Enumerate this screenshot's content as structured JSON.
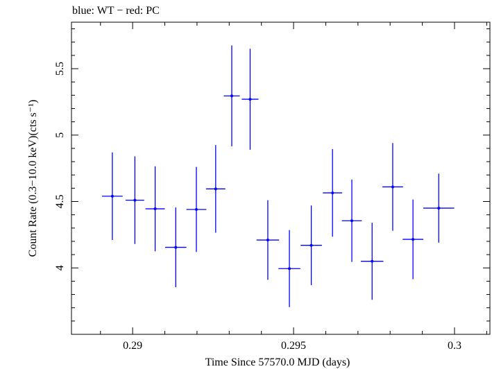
{
  "chart_data": {
    "type": "scatter",
    "title": "blue: WT − red: PC",
    "xlabel": "Time Since 57570.0 MJD (days)",
    "ylabel": "Count Rate (0.3−10.0 keV)(cts s⁻¹)",
    "xlim": [
      0.2881,
      0.3011
    ],
    "ylim": [
      3.5,
      5.85
    ],
    "x_ticks": [
      0.29,
      0.295,
      0.3
    ],
    "x_tick_labels": [
      "0.29",
      "0.295",
      "0.3"
    ],
    "y_ticks": [
      4,
      4.5,
      5,
      5.5
    ],
    "y_tick_labels": [
      "4",
      "4.5",
      "5",
      "5.5"
    ],
    "grid": false,
    "series": [
      {
        "color": "#0000ff",
        "points": [
          {
            "x": 0.28937,
            "xerr": 0.00032,
            "y": 4.54,
            "yerr": 0.33
          },
          {
            "x": 0.29007,
            "xerr": 0.00029,
            "y": 4.51,
            "yerr": 0.33
          },
          {
            "x": 0.2907,
            "xerr": 0.0003,
            "y": 4.445,
            "yerr": 0.32
          },
          {
            "x": 0.29134,
            "xerr": 0.00033,
            "y": 4.155,
            "yerr": 0.3
          },
          {
            "x": 0.29198,
            "xerr": 0.00031,
            "y": 4.44,
            "yerr": 0.32
          },
          {
            "x": 0.29258,
            "xerr": 0.0003,
            "y": 4.595,
            "yerr": 0.33
          },
          {
            "x": 0.29308,
            "xerr": 0.00025,
            "y": 5.295,
            "yerr": 0.38
          },
          {
            "x": 0.29365,
            "xerr": 0.00026,
            "y": 5.27,
            "yerr": 0.38
          },
          {
            "x": 0.2942,
            "xerr": 0.00035,
            "y": 4.21,
            "yerr": 0.3
          },
          {
            "x": 0.29487,
            "xerr": 0.00034,
            "y": 3.995,
            "yerr": 0.29
          },
          {
            "x": 0.29555,
            "xerr": 0.00033,
            "y": 4.17,
            "yerr": 0.3
          },
          {
            "x": 0.29621,
            "xerr": 0.0003,
            "y": 4.565,
            "yerr": 0.33
          },
          {
            "x": 0.29681,
            "xerr": 0.00031,
            "y": 4.355,
            "yerr": 0.31
          },
          {
            "x": 0.29744,
            "xerr": 0.00035,
            "y": 4.05,
            "yerr": 0.29
          },
          {
            "x": 0.29808,
            "xerr": 0.00032,
            "y": 4.61,
            "yerr": 0.33
          },
          {
            "x": 0.29871,
            "xerr": 0.00032,
            "y": 4.215,
            "yerr": 0.3
          },
          {
            "x": 0.29951,
            "xerr": 0.00048,
            "y": 4.45,
            "yerr": 0.26
          }
        ]
      }
    ]
  }
}
